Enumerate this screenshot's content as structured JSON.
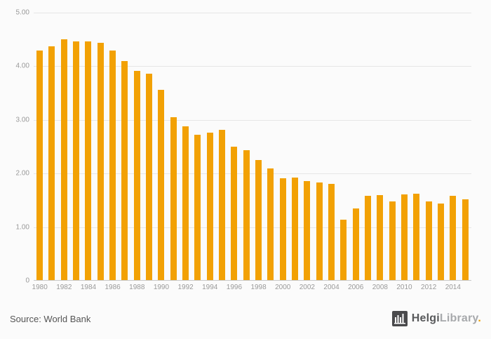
{
  "chart_data": {
    "type": "bar",
    "categories": [
      1980,
      1981,
      1982,
      1983,
      1984,
      1985,
      1986,
      1987,
      1988,
      1989,
      1990,
      1991,
      1992,
      1993,
      1994,
      1995,
      1996,
      1997,
      1998,
      1999,
      2000,
      2001,
      2002,
      2003,
      2004,
      2005,
      2006,
      2007,
      2008,
      2009,
      2010,
      2011,
      2012,
      2013,
      2014,
      2015
    ],
    "values": [
      4.29,
      4.37,
      4.5,
      4.46,
      4.46,
      4.44,
      4.29,
      4.1,
      3.92,
      3.86,
      3.56,
      3.05,
      2.88,
      2.72,
      2.76,
      2.81,
      2.5,
      2.43,
      2.25,
      2.1,
      1.91,
      1.92,
      1.86,
      1.83,
      1.8,
      1.14,
      1.35,
      1.58,
      1.6,
      1.48,
      1.61,
      1.62,
      1.48,
      1.44,
      1.58,
      1.52
    ],
    "title": "",
    "xlabel": "",
    "ylabel": "",
    "ylim": [
      0,
      5
    ],
    "yticks": [
      0,
      1,
      2,
      3,
      4,
      5
    ],
    "ytick_labels": [
      "0",
      "1.00",
      "2.00",
      "3.00",
      "4.00",
      "5.00"
    ],
    "xtick_every": 2,
    "grid": true,
    "legend": "none",
    "bar_color": "#f2a104"
  },
  "footer": {
    "source": "Source: World Bank",
    "logo": {
      "part1": "Helgi",
      "part2": "Library",
      "dot": "."
    }
  },
  "colors": {
    "bar": "#f2a104",
    "grid": "#e6e6e6",
    "axis": "#c9c9c9",
    "tick_text": "#999999",
    "source_text": "#555555",
    "background": "#fbfbfb",
    "logo_dark": "#58595b",
    "logo_light": "#a7a9ac",
    "logo_dot": "#f2a104"
  }
}
